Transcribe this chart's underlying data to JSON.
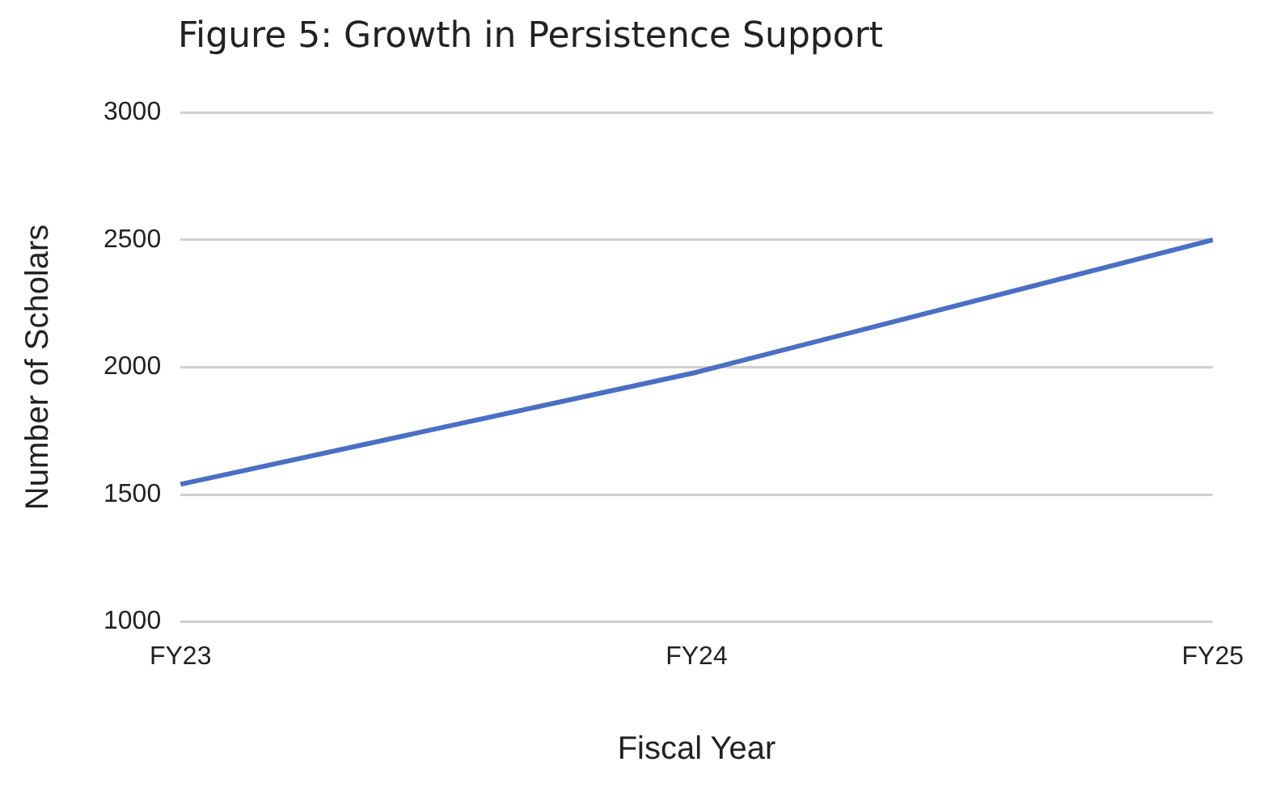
{
  "chart_data": {
    "type": "line",
    "title": "Figure 5: Growth in Persistence Support",
    "xlabel": "Fiscal Year",
    "ylabel": "Number of Scholars",
    "categories": [
      "FY23",
      "FY24",
      "FY25"
    ],
    "series": [
      {
        "color": "#4a6fc4",
        "values": [
          1540,
          1980,
          2500
        ]
      }
    ],
    "ylim": [
      1000,
      3000
    ],
    "yticks": [
      1000,
      1500,
      2000,
      2500,
      3000
    ],
    "grid": "y",
    "legend": false,
    "marker": "none"
  }
}
